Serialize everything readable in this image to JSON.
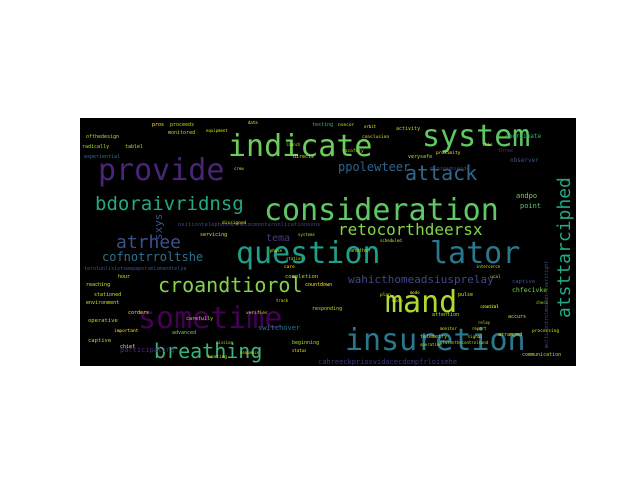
{
  "words": [
    {
      "text": "system",
      "color": "#5ec962"
    },
    {
      "text": "indicate",
      "color": "#6ccd5a"
    },
    {
      "text": "provide",
      "color": "#482576"
    },
    {
      "text": "attack",
      "color": "#31688e"
    },
    {
      "text": "consideration",
      "color": "#5ec962"
    },
    {
      "text": "question",
      "color": "#1f9e89"
    },
    {
      "text": "lator",
      "color": "#2a788e"
    },
    {
      "text": "mand",
      "color": "#addc30"
    },
    {
      "text": "sometime",
      "color": "#440154"
    },
    {
      "text": "insuretion",
      "color": "#2a788e"
    },
    {
      "text": "breathing",
      "color": "#35b779"
    },
    {
      "text": "croandtiorol",
      "color": "#84d44b"
    },
    {
      "text": "atrhee",
      "color": "#3b528b"
    },
    {
      "text": "bdoraivridnsg",
      "color": "#23a983"
    },
    {
      "text": "retocorthdeersx",
      "color": "#84d44b"
    },
    {
      "text": "atsttarciphed",
      "color": "#22a884"
    },
    {
      "text": "ppolewteer",
      "color": "#33638d"
    },
    {
      "text": "cofnotrroltshe",
      "color": "#2c728e"
    },
    {
      "text": "wahicthomeadsiusprelay",
      "color": "#3f4889"
    },
    {
      "text": "tema",
      "color": "#443a83"
    },
    {
      "text": "sxys",
      "color": "#3b528b"
    },
    {
      "text": "cahreeckpriosvidacecdompfrloismhe",
      "color": "#46337e"
    },
    {
      "text": "participating",
      "color": "#472d7b"
    },
    {
      "text": "ositiontelephonnethecocmonturonlicationsons",
      "color": "#3e4a89"
    },
    {
      "text": "terolunlisiytswepaporsmlsmandtelya",
      "color": "#3b528b"
    },
    {
      "text": "switchover",
      "color": "#2c728e"
    },
    {
      "text": "chfecivke",
      "color": "#7ad151"
    },
    {
      "text": "captive",
      "color": "#3b528b"
    },
    {
      "text": "andpo",
      "color": "#7ad151"
    },
    {
      "text": "point",
      "color": "#56c667"
    },
    {
      "text": "minimumseide",
      "color": "#443983"
    },
    {
      "text": "observer",
      "color": "#3b528b"
    },
    {
      "text": "three",
      "color": "#46337e"
    },
    {
      "text": "coordinate",
      "color": "#35b779"
    },
    {
      "text": "completion",
      "color": "#addc30"
    },
    {
      "text": "countdown",
      "color": "#fde725"
    },
    {
      "text": "stationed",
      "color": "#d2e21b"
    },
    {
      "text": "environment",
      "color": "#d2e21b"
    },
    {
      "text": "operative",
      "color": "#addc30"
    },
    {
      "text": "captive",
      "color": "#addc30"
    },
    {
      "text": "corders",
      "color": "#fde725"
    },
    {
      "text": "advanced",
      "color": "#7ad151"
    },
    {
      "text": "carefully",
      "color": "#b5de2b"
    },
    {
      "text": "responding",
      "color": "#b5de2b"
    },
    {
      "text": "beginning",
      "color": "#b5de2b"
    },
    {
      "text": "telemetry",
      "color": "#b5de2b"
    },
    {
      "text": "arranged",
      "color": "#d2e21b"
    },
    {
      "text": "accurs",
      "color": "#d2e21b"
    },
    {
      "text": "ofthedesign",
      "color": "#addc30"
    },
    {
      "text": "radically",
      "color": "#b5de2b"
    },
    {
      "text": "tablel",
      "color": "#b5de2b"
    },
    {
      "text": "experiential",
      "color": "#2c728e"
    },
    {
      "text": "proceeds",
      "color": "#b5de2b"
    },
    {
      "text": "monitored",
      "color": "#b5de2b"
    },
    {
      "text": "reaching",
      "color": "#d2e21b"
    },
    {
      "text": "hour",
      "color": "#d2e21b"
    },
    {
      "text": "chief",
      "color": "#fde725"
    },
    {
      "text": "important",
      "color": "#fde725"
    },
    {
      "text": "servicing",
      "color": "#d2e21b"
    },
    {
      "text": "pulse",
      "color": "#d2e21b"
    },
    {
      "text": "verifies",
      "color": "#d2e21b"
    },
    {
      "text": "activity",
      "color": "#b5de2b"
    },
    {
      "text": "testing",
      "color": "#35b779"
    },
    {
      "text": "directs",
      "color": "#d2e21b"
    },
    {
      "text": "another",
      "color": "#b5de2b"
    },
    {
      "text": "attention",
      "color": "#b5de2b"
    },
    {
      "text": "communication",
      "color": "#b5de2b"
    },
    {
      "text": "pros",
      "color": "#fde725"
    },
    {
      "text": "care",
      "color": "#fde725"
    },
    {
      "text": "this",
      "color": "#d2e21b"
    },
    {
      "text": "upon",
      "color": "#fde725"
    },
    {
      "text": "verysafe",
      "color": "#b5de2b"
    },
    {
      "text": "conclusion",
      "color": "#d2e21b"
    },
    {
      "text": "processing",
      "color": "#d2e21b"
    },
    {
      "text": "tasafety",
      "color": "#b5de2b"
    },
    {
      "text": "nsecor",
      "color": "#d2e21b"
    },
    {
      "text": "crucial",
      "color": "#b5de2b"
    },
    {
      "text": "proximity",
      "color": "#fde725"
    },
    {
      "text": "plan",
      "color": "#d2e21b"
    },
    {
      "text": "mode",
      "color": "#fde725"
    },
    {
      "text": "ucal",
      "color": "#b5de2b"
    },
    {
      "text": "intercerce",
      "color": "#d2e21b"
    },
    {
      "text": "equipment",
      "color": "#d2e21b"
    },
    {
      "text": "data",
      "color": "#fde725"
    },
    {
      "text": "mission",
      "color": "#b5de2b"
    },
    {
      "text": "monitor",
      "color": "#d2e21b"
    },
    {
      "text": "operation",
      "color": "#b5de2b"
    },
    {
      "text": "sequence",
      "color": "#d2e21b"
    },
    {
      "text": "orbit",
      "color": "#fde725"
    },
    {
      "text": "launch",
      "color": "#b5de2b"
    },
    {
      "text": "signal",
      "color": "#d2e21b"
    },
    {
      "text": "relay",
      "color": "#b5de2b"
    },
    {
      "text": "crew",
      "color": "#d2e21b"
    },
    {
      "text": "status",
      "color": "#fde725"
    },
    {
      "text": "control",
      "color": "#b5de2b"
    },
    {
      "text": "report",
      "color": "#d2e21b"
    },
    {
      "text": "check",
      "color": "#b5de2b"
    },
    {
      "text": "track",
      "color": "#d2e21b"
    },
    {
      "text": "heating",
      "color": "#d2e21b"
    },
    {
      "text": "dissigned",
      "color": "#d2e21b"
    },
    {
      "text": "plusonthecontrolsand",
      "color": "#b5de2b"
    },
    {
      "text": "multicontrolmodeminiversright",
      "color": "#3e4a89"
    },
    {
      "text": "scheduled",
      "color": "#d2e21b"
    },
    {
      "text": "systems",
      "color": "#b5de2b"
    },
    {
      "text": "phase",
      "color": "#d2e21b"
    },
    {
      "text": "station",
      "color": "#b5de2b"
    }
  ]
}
